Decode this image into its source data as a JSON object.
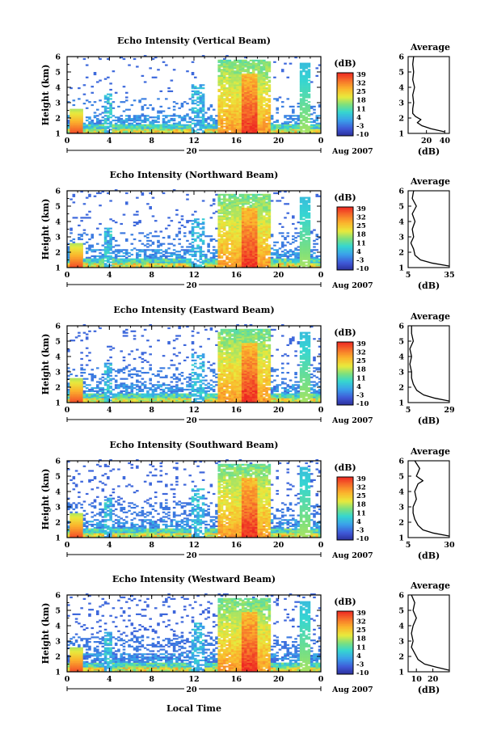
{
  "figure": {
    "xlabel": "Local Time",
    "day_label": "20",
    "date_label": "Aug 2007",
    "colorbar_unit": "(dB)",
    "average_title": "Average",
    "average_xlabel": "(dB)"
  },
  "chart_data": [
    {
      "type": "heatmap",
      "title": "Echo Intensity (Vertical Beam)",
      "ylabel": "Height (km)",
      "xlabel": "Local Time",
      "x_ticks": [
        "0",
        "4",
        "8",
        "12",
        "16",
        "20",
        "0"
      ],
      "x_range_hours": [
        0,
        24
      ],
      "y_ticks": [
        "1",
        "2",
        "3",
        "4",
        "5",
        "6"
      ],
      "ylim": [
        1,
        6
      ],
      "colorbar": {
        "label": "(dB)",
        "ticks": [
          "39",
          "32",
          "25",
          "18",
          "11",
          "4",
          "-3",
          "-10"
        ],
        "range": [
          -10,
          39
        ]
      },
      "average_profile": {
        "title": "Average",
        "xlabel": "(dB)",
        "xlim": [
          0,
          45
        ],
        "x_ticks": [
          "20",
          "40"
        ],
        "height": [
          1.1,
          1.3,
          1.5,
          1.7,
          1.9,
          2.1,
          2.3,
          2.6,
          3.0,
          3.5,
          4.0,
          4.5,
          5.0,
          5.5,
          6.0
        ],
        "value": [
          40,
          25,
          15,
          10,
          14,
          8,
          5,
          5,
          6,
          5,
          7,
          5,
          6,
          5,
          6
        ]
      }
    },
    {
      "type": "heatmap",
      "title": "Echo Intensity (Northward Beam)",
      "ylabel": "Height (km)",
      "xlabel": "Local Time",
      "x_ticks": [
        "0",
        "4",
        "8",
        "12",
        "16",
        "20",
        "0"
      ],
      "x_range_hours": [
        0,
        24
      ],
      "y_ticks": [
        "1",
        "2",
        "3",
        "4",
        "5",
        "6"
      ],
      "ylim": [
        1,
        6
      ],
      "colorbar": {
        "label": "(dB)",
        "ticks": [
          "39",
          "32",
          "25",
          "18",
          "11",
          "4",
          "-3",
          "-10"
        ],
        "range": [
          -10,
          39
        ]
      },
      "average_profile": {
        "title": "Average",
        "xlabel": "(dB)",
        "xlim": [
          5,
          35
        ],
        "x_ticks": [
          "5",
          "35"
        ],
        "height": [
          1.1,
          1.3,
          1.5,
          1.8,
          2.2,
          2.6,
          3.0,
          3.5,
          4.0,
          4.5,
          5.0,
          5.5,
          6.0
        ],
        "value": [
          35,
          22,
          14,
          10,
          9,
          7,
          9,
          8,
          10,
          8,
          11,
          8,
          9
        ]
      }
    },
    {
      "type": "heatmap",
      "title": "Echo Intensity (Eastward Beam)",
      "ylabel": "Height (km)",
      "xlabel": "Local Time",
      "x_ticks": [
        "0",
        "4",
        "8",
        "12",
        "16",
        "20",
        "0"
      ],
      "x_range_hours": [
        0,
        24
      ],
      "y_ticks": [
        "1",
        "2",
        "3",
        "4",
        "5",
        "6"
      ],
      "ylim": [
        1,
        6
      ],
      "colorbar": {
        "label": "(dB)",
        "ticks": [
          "39",
          "32",
          "25",
          "18",
          "11",
          "4",
          "-3",
          "-10"
        ],
        "range": [
          -10,
          39
        ]
      },
      "average_profile": {
        "title": "Average",
        "xlabel": "(dB)",
        "xlim": [
          5,
          29
        ],
        "x_ticks": [
          "5",
          "29"
        ],
        "height": [
          1.1,
          1.3,
          1.5,
          1.8,
          2.2,
          2.6,
          3.0,
          3.5,
          4.0,
          4.5,
          5.0,
          5.5,
          6.0
        ],
        "value": [
          29,
          20,
          14,
          10,
          8,
          7,
          7,
          6,
          7,
          6,
          8,
          7,
          7
        ]
      }
    },
    {
      "type": "heatmap",
      "title": "Echo Intensity (Southward Beam)",
      "ylabel": "Height (km)",
      "xlabel": "Local Time",
      "x_ticks": [
        "0",
        "4",
        "8",
        "12",
        "16",
        "20",
        "0"
      ],
      "x_range_hours": [
        0,
        24
      ],
      "y_ticks": [
        "1",
        "2",
        "3",
        "4",
        "5",
        "6"
      ],
      "ylim": [
        1,
        6
      ],
      "colorbar": {
        "label": "(dB)",
        "ticks": [
          "39",
          "32",
          "25",
          "18",
          "11",
          "4",
          "-3",
          "-10"
        ],
        "range": [
          -10,
          39
        ]
      },
      "average_profile": {
        "title": "Average",
        "xlabel": "(dB)",
        "xlim": [
          5,
          30
        ],
        "x_ticks": [
          "5",
          "30"
        ],
        "height": [
          1.1,
          1.3,
          1.5,
          1.8,
          2.2,
          2.6,
          3.0,
          3.5,
          4.0,
          4.5,
          4.7,
          5.0,
          5.5,
          6.0
        ],
        "value": [
          30,
          20,
          14,
          11,
          9,
          8,
          8,
          10,
          9,
          11,
          14,
          10,
          12,
          9
        ]
      }
    },
    {
      "type": "heatmap",
      "title": "Echo Intensity (Westward Beam)",
      "ylabel": "Height (km)",
      "xlabel": "Local Time",
      "x_ticks": [
        "0",
        "4",
        "8",
        "12",
        "16",
        "20",
        "0"
      ],
      "x_range_hours": [
        0,
        24
      ],
      "y_ticks": [
        "1",
        "2",
        "3",
        "4",
        "5",
        "6"
      ],
      "ylim": [
        1,
        6
      ],
      "colorbar": {
        "label": "(dB)",
        "ticks": [
          "39",
          "32",
          "25",
          "18",
          "11",
          "4",
          "-3",
          "-10"
        ],
        "range": [
          -10,
          39
        ]
      },
      "average_profile": {
        "title": "Average",
        "xlabel": "(dB)",
        "xlim": [
          5,
          30
        ],
        "x_ticks": [
          "10",
          "20"
        ],
        "height": [
          1.1,
          1.3,
          1.5,
          1.8,
          2.2,
          2.6,
          3.0,
          3.5,
          4.0,
          4.5,
          5.0,
          5.5,
          6.0
        ],
        "value": [
          30,
          22,
          15,
          11,
          9,
          7,
          8,
          7,
          8,
          10,
          8,
          9,
          7
        ]
      }
    }
  ]
}
